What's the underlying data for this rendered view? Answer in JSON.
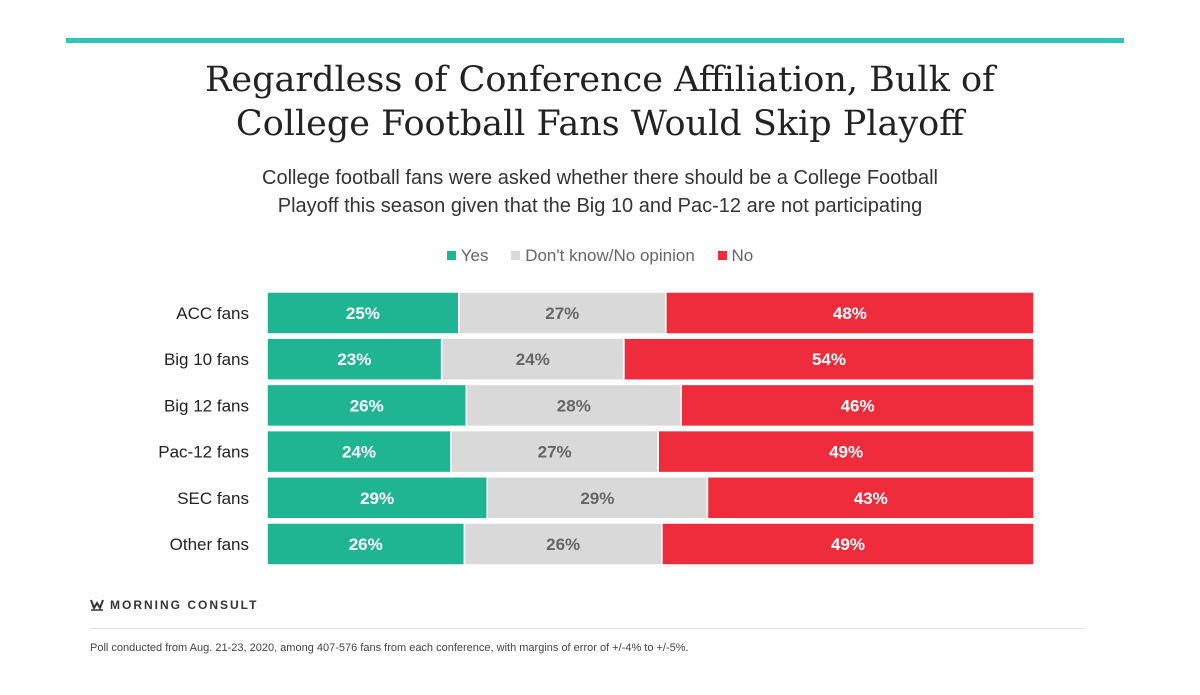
{
  "title": {
    "line1": "Regardless of Conference Affiliation, Bulk of",
    "line2": "College Football Fans Would Skip Playoff"
  },
  "subtitle": {
    "line1": "College football fans were asked whether there should be a College Football",
    "line2": "Playoff this season given that the Big 10 and Pac-12 are not participating"
  },
  "brand": "MORNING CONSULT",
  "footnote": "Poll conducted from Aug. 21-23, 2020, among 407-576 fans from each conference, with margins of error of +/-4% to +/-5%.",
  "colors": {
    "accent": "#2ec4b6",
    "yes": "#1fb592",
    "dont_know": "#d9d9d9",
    "no": "#ee2c3c"
  },
  "chart_data": {
    "type": "bar",
    "orientation": "horizontal",
    "stacked": true,
    "categories": [
      "ACC fans",
      "Big 10 fans",
      "Big 12 fans",
      "Pac-12 fans",
      "SEC fans",
      "Other fans"
    ],
    "series": [
      {
        "name": "Yes",
        "values": [
          25,
          23,
          26,
          24,
          29,
          26
        ]
      },
      {
        "name": "Don't know/No opinion",
        "values": [
          27,
          24,
          28,
          27,
          29,
          26
        ]
      },
      {
        "name": "No",
        "values": [
          48,
          54,
          46,
          49,
          43,
          49
        ]
      }
    ],
    "value_suffix": "%",
    "legend_position": "top-center",
    "grid": false
  }
}
